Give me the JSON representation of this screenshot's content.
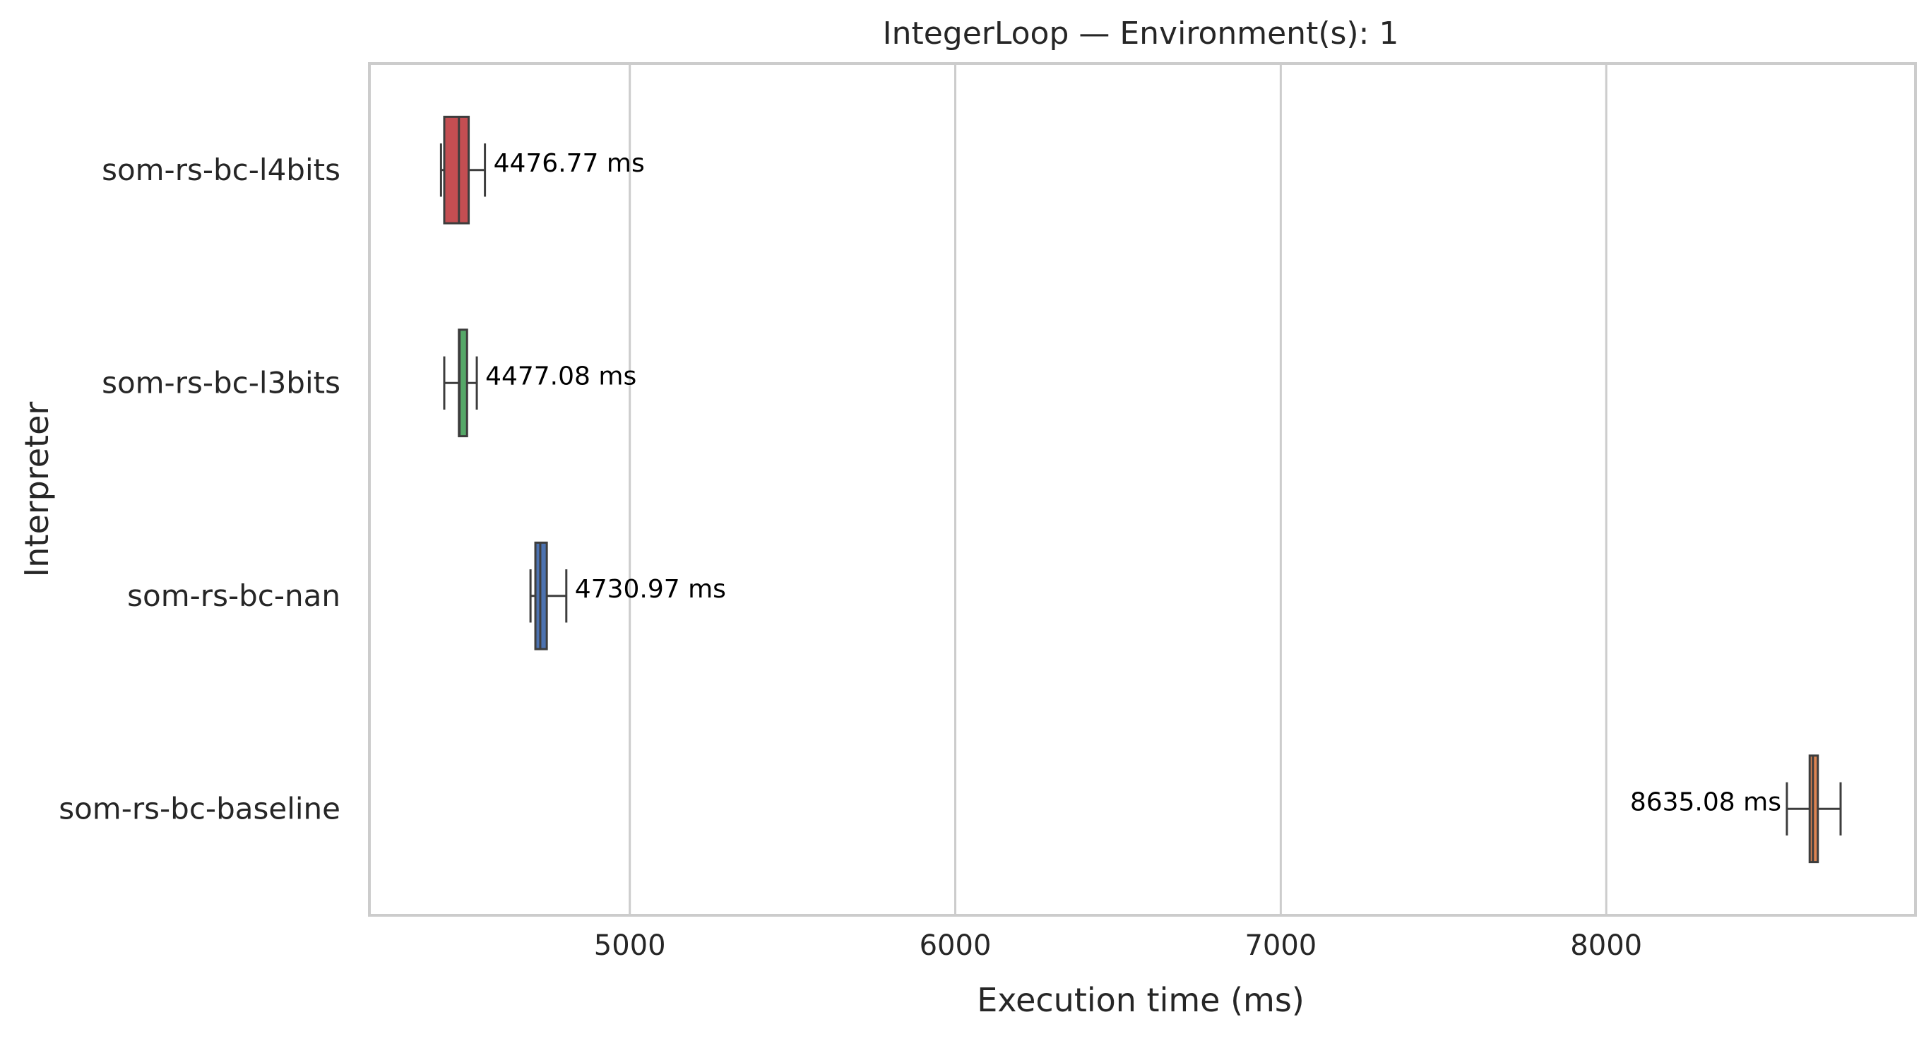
{
  "chart_data": {
    "type": "box",
    "orientation": "horizontal",
    "title": "IntegerLoop — Environment(s): 1",
    "xlabel": "Execution time (ms)",
    "ylabel": "Interpreter",
    "xlim": [
      4200,
      8950
    ],
    "xticks": [
      5000,
      6000,
      7000,
      8000
    ],
    "xtick_labels": [
      "5000",
      "6000",
      "7000",
      "8000"
    ],
    "grid": "vertical",
    "legend": "none",
    "categories": [
      "som-rs-bc-l4bits",
      "som-rs-bc-l3bits",
      "som-rs-bc-nan",
      "som-rs-bc-baseline"
    ],
    "series": [
      {
        "category": "som-rs-bc-l4bits",
        "color": "#c44e52",
        "whisker_low": 4420,
        "q1": 4430,
        "median": 4475,
        "q3": 4505,
        "whisker_high": 4555,
        "label": "4476.77 ms",
        "label_side": "right"
      },
      {
        "category": "som-rs-bc-l3bits",
        "color": "#55a868",
        "whisker_low": 4430,
        "q1": 4475,
        "median": 4477,
        "q3": 4500,
        "whisker_high": 4530,
        "label": "4477.08 ms",
        "label_side": "right"
      },
      {
        "category": "som-rs-bc-nan",
        "color": "#4c72b0",
        "whisker_low": 4695,
        "q1": 4710,
        "median": 4725,
        "q3": 4745,
        "whisker_high": 4805,
        "label": "4730.97 ms",
        "label_side": "right"
      },
      {
        "category": "som-rs-bc-baseline",
        "color": "#dd8452",
        "whisker_low": 8555,
        "q1": 8625,
        "median": 8635,
        "q3": 8650,
        "whisker_high": 8720,
        "label": "8635.08 ms",
        "label_side": "left"
      }
    ]
  }
}
